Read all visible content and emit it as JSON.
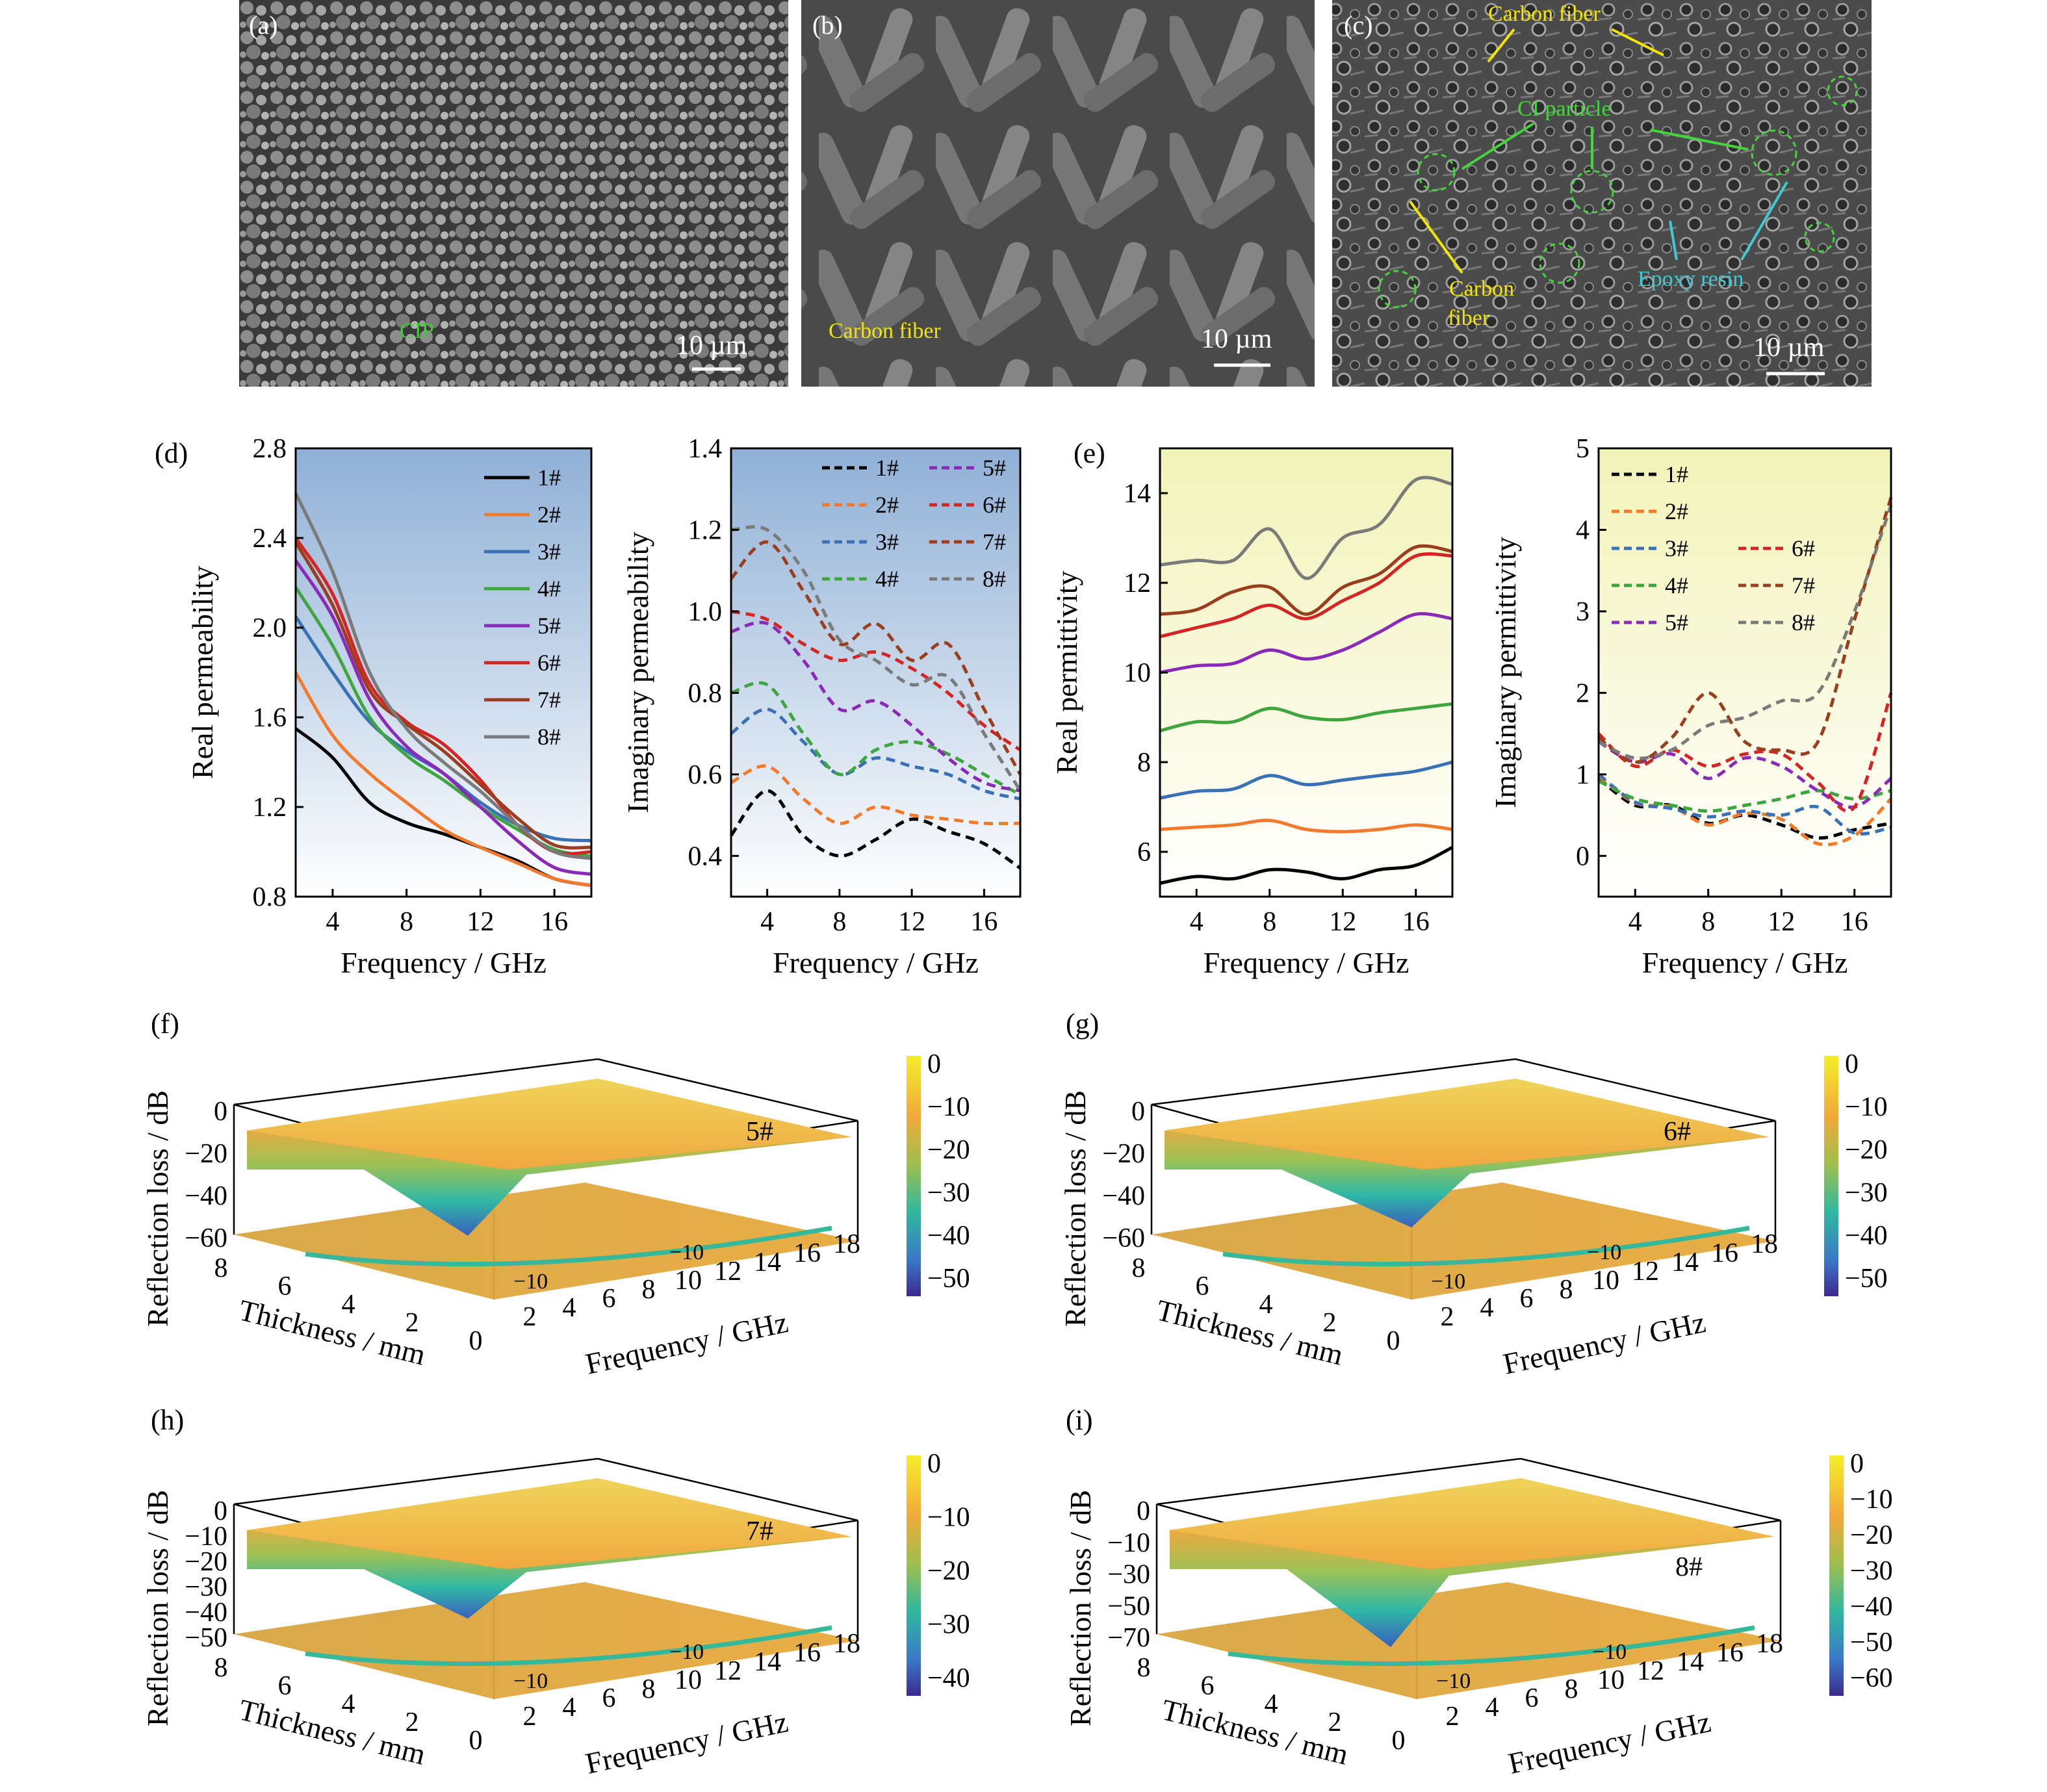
{
  "sem": [
    {
      "letter": "(a)",
      "label": "CIP",
      "label_color": "#39d42a",
      "scale": "10 µm"
    },
    {
      "letter": "(b)",
      "label": "Carbon fiber",
      "label_color": "#f2e600",
      "scale": "10 µm"
    },
    {
      "letter": "(c)",
      "scale": "10 µm",
      "annotations": [
        {
          "text": "Carbon fiber",
          "color": "#f2e600"
        },
        {
          "text": "CI particle",
          "color": "#43d63a"
        },
        {
          "text": "Carbon",
          "color": "#f2e600"
        },
        {
          "text": "fiber",
          "color": "#f2e600"
        },
        {
          "text": "Epoxy resin",
          "color": "#3fc9d0"
        }
      ]
    }
  ],
  "panel_letters": {
    "d": "(d)",
    "e": "(e)",
    "f": "(f)",
    "g": "(g)",
    "h": "(h)",
    "i": "(i)"
  },
  "series_colors": {
    "1#": "#000000",
    "2#": "#f47a2b",
    "3#": "#3a70b5",
    "4#": "#3fa63f",
    "5#": "#8b2ab8",
    "6#": "#d42424",
    "7#": "#9a3e1e",
    "8#": "#7a7a7a"
  },
  "chart_data": [
    {
      "id": "real-permeability",
      "type": "line",
      "xlabel": "Frequency / GHz",
      "ylabel": "Real permeability",
      "xlim": [
        2,
        18
      ],
      "ylim": [
        0.8,
        2.8
      ],
      "xticks": [
        4,
        8,
        12,
        16
      ],
      "yticks": [
        "0.8",
        "1.2",
        "1.6",
        "2.0",
        "2.4",
        "2.8"
      ],
      "line": "solid",
      "background": "blue",
      "legend": [
        "1#",
        "2#",
        "3#",
        "4#",
        "5#",
        "6#",
        "7#",
        "8#"
      ],
      "x": [
        2,
        4,
        6,
        8,
        10,
        12,
        14,
        16,
        18
      ],
      "series": [
        {
          "name": "1#",
          "values": [
            1.55,
            1.42,
            1.22,
            1.13,
            1.08,
            1.02,
            0.96,
            0.88,
            0.85
          ]
        },
        {
          "name": "2#",
          "values": [
            1.8,
            1.52,
            1.35,
            1.22,
            1.1,
            1.02,
            0.95,
            0.88,
            0.85
          ]
        },
        {
          "name": "3#",
          "values": [
            2.05,
            1.8,
            1.58,
            1.45,
            1.35,
            1.22,
            1.12,
            1.06,
            1.05
          ]
        },
        {
          "name": "4#",
          "values": [
            2.18,
            1.92,
            1.6,
            1.43,
            1.32,
            1.2,
            1.1,
            1.01,
            0.98
          ]
        },
        {
          "name": "5#",
          "values": [
            2.3,
            2.05,
            1.68,
            1.47,
            1.35,
            1.2,
            1.05,
            0.93,
            0.9
          ]
        },
        {
          "name": "6#",
          "values": [
            2.4,
            2.15,
            1.75,
            1.58,
            1.48,
            1.32,
            1.12,
            1.0,
            1.0
          ]
        },
        {
          "name": "7#",
          "values": [
            2.38,
            2.1,
            1.72,
            1.57,
            1.45,
            1.3,
            1.15,
            1.03,
            1.02
          ]
        },
        {
          "name": "8#",
          "values": [
            2.6,
            2.25,
            1.8,
            1.55,
            1.4,
            1.27,
            1.12,
            1.0,
            0.97
          ]
        }
      ]
    },
    {
      "id": "imaginary-permeability",
      "type": "line",
      "xlabel": "Frequency / GHz",
      "ylabel": "Imaginary permeability",
      "xlim": [
        2,
        18
      ],
      "ylim": [
        0.3,
        1.4
      ],
      "xticks": [
        4,
        8,
        12,
        16
      ],
      "yticks": [
        "0.4",
        "0.6",
        "0.8",
        "1.0",
        "1.2",
        "1.4"
      ],
      "line": "dashed",
      "background": "blue",
      "legend": [
        "1#",
        "2#",
        "3#",
        "4#",
        "5#",
        "6#",
        "7#",
        "8#"
      ],
      "x": [
        2,
        4,
        6,
        8,
        10,
        12,
        14,
        16,
        18
      ],
      "series": [
        {
          "name": "1#",
          "values": [
            0.45,
            0.56,
            0.45,
            0.4,
            0.44,
            0.49,
            0.46,
            0.43,
            0.37
          ]
        },
        {
          "name": "2#",
          "values": [
            0.58,
            0.62,
            0.54,
            0.48,
            0.52,
            0.5,
            0.49,
            0.48,
            0.48
          ]
        },
        {
          "name": "3#",
          "values": [
            0.7,
            0.76,
            0.68,
            0.6,
            0.64,
            0.62,
            0.6,
            0.56,
            0.54
          ]
        },
        {
          "name": "4#",
          "values": [
            0.8,
            0.82,
            0.7,
            0.6,
            0.66,
            0.68,
            0.65,
            0.6,
            0.55
          ]
        },
        {
          "name": "5#",
          "values": [
            0.95,
            0.97,
            0.88,
            0.76,
            0.78,
            0.72,
            0.64,
            0.58,
            0.56
          ]
        },
        {
          "name": "6#",
          "values": [
            1.0,
            0.98,
            0.92,
            0.88,
            0.9,
            0.86,
            0.8,
            0.72,
            0.66
          ]
        },
        {
          "name": "7#",
          "values": [
            1.08,
            1.17,
            1.05,
            0.92,
            0.97,
            0.88,
            0.92,
            0.76,
            0.6
          ]
        },
        {
          "name": "8#",
          "values": [
            1.2,
            1.2,
            1.1,
            0.93,
            0.88,
            0.82,
            0.84,
            0.7,
            0.56
          ]
        }
      ]
    },
    {
      "id": "real-permittivity",
      "type": "line",
      "xlabel": "Frequency / GHz",
      "ylabel": "Real permittivity",
      "xlim": [
        2,
        18
      ],
      "ylim": [
        5,
        15
      ],
      "xticks": [
        4,
        8,
        12,
        16
      ],
      "yticks": [
        "6",
        "8",
        "10",
        "12",
        "14"
      ],
      "line": "solid",
      "background": "yellow",
      "legend": [],
      "x": [
        2,
        4,
        6,
        8,
        10,
        12,
        14,
        16,
        18
      ],
      "series": [
        {
          "name": "1#",
          "values": [
            5.3,
            5.45,
            5.4,
            5.6,
            5.55,
            5.4,
            5.6,
            5.7,
            6.1
          ]
        },
        {
          "name": "2#",
          "values": [
            6.5,
            6.55,
            6.6,
            6.7,
            6.5,
            6.45,
            6.5,
            6.6,
            6.5
          ]
        },
        {
          "name": "3#",
          "values": [
            7.2,
            7.35,
            7.4,
            7.7,
            7.5,
            7.6,
            7.7,
            7.8,
            8.0
          ]
        },
        {
          "name": "4#",
          "values": [
            8.7,
            8.9,
            8.9,
            9.2,
            9.0,
            8.95,
            9.1,
            9.2,
            9.3
          ]
        },
        {
          "name": "5#",
          "values": [
            10.0,
            10.15,
            10.2,
            10.5,
            10.3,
            10.5,
            10.9,
            11.3,
            11.2
          ]
        },
        {
          "name": "6#",
          "values": [
            10.8,
            11.0,
            11.2,
            11.5,
            11.2,
            11.6,
            12.0,
            12.6,
            12.6
          ]
        },
        {
          "name": "7#",
          "values": [
            11.3,
            11.4,
            11.8,
            11.9,
            11.3,
            11.9,
            12.2,
            12.8,
            12.7
          ]
        },
        {
          "name": "8#",
          "values": [
            12.4,
            12.5,
            12.5,
            13.2,
            12.1,
            13.0,
            13.3,
            14.3,
            14.2
          ]
        }
      ]
    },
    {
      "id": "imaginary-permittivity",
      "type": "line",
      "xlabel": "Frequency / GHz",
      "ylabel": "Imaginary permittivity",
      "xlim": [
        2,
        18
      ],
      "ylim": [
        -0.5,
        5
      ],
      "xticks": [
        4,
        8,
        12,
        16
      ],
      "yticks": [
        "0",
        "1",
        "2",
        "3",
        "4",
        "5"
      ],
      "line": "dashed",
      "background": "yellow",
      "legend": [
        "1#",
        "2#",
        "3#",
        "4#",
        "5#",
        "6#",
        "7#",
        "8#"
      ],
      "x": [
        2,
        4,
        6,
        8,
        10,
        12,
        14,
        16,
        18
      ],
      "series": [
        {
          "name": "1#",
          "values": [
            0.95,
            0.62,
            0.62,
            0.4,
            0.5,
            0.38,
            0.22,
            0.32,
            0.4
          ]
        },
        {
          "name": "2#",
          "values": [
            0.98,
            0.65,
            0.6,
            0.38,
            0.52,
            0.45,
            0.15,
            0.25,
            0.7
          ]
        },
        {
          "name": "3#",
          "values": [
            1.0,
            0.66,
            0.58,
            0.48,
            0.55,
            0.5,
            0.6,
            0.28,
            0.35
          ]
        },
        {
          "name": "4#",
          "values": [
            0.92,
            0.7,
            0.62,
            0.55,
            0.62,
            0.7,
            0.8,
            0.7,
            0.8
          ]
        },
        {
          "name": "5#",
          "values": [
            1.4,
            1.15,
            1.25,
            0.95,
            1.2,
            1.1,
            0.8,
            0.6,
            0.95
          ]
        },
        {
          "name": "6#",
          "values": [
            1.5,
            1.1,
            1.3,
            1.1,
            1.25,
            1.25,
            0.9,
            0.6,
            2.0
          ]
        },
        {
          "name": "7#",
          "values": [
            1.45,
            1.15,
            1.45,
            2.0,
            1.4,
            1.3,
            1.4,
            2.9,
            4.4
          ]
        },
        {
          "name": "8#",
          "values": [
            1.4,
            1.2,
            1.3,
            1.6,
            1.7,
            1.9,
            2.0,
            3.0,
            4.3
          ]
        }
      ]
    },
    {
      "id": "rl-5",
      "type": "heatmap",
      "label": "5#",
      "zlabel": "Reflection loss / dB",
      "xlabel": "Frequency / GHz",
      "ylabel": "Thickness / mm",
      "zticks": [
        "0",
        "−20",
        "−40",
        "−60"
      ],
      "cticks": [
        "0",
        "−10",
        "−20",
        "−30",
        "−40",
        "−50"
      ],
      "xticks": [
        "2",
        "4",
        "6",
        "8",
        "10",
        "12",
        "14",
        "16",
        "18"
      ],
      "yticks": [
        "8",
        "6",
        "4",
        "2",
        "0"
      ],
      "contour": [
        "−10",
        "−10"
      ],
      "min_rl": -55
    },
    {
      "id": "rl-6",
      "type": "heatmap",
      "label": "6#",
      "zlabel": "Reflection loss / dB",
      "xlabel": "Frequency / GHz",
      "ylabel": "Thickness / mm",
      "zticks": [
        "0",
        "−20",
        "−40",
        "−60"
      ],
      "cticks": [
        "0",
        "−10",
        "−20",
        "−30",
        "−40",
        "−50"
      ],
      "xticks": [
        "2",
        "4",
        "6",
        "8",
        "10",
        "12",
        "14",
        "16",
        "18"
      ],
      "yticks": [
        "8",
        "6",
        "4",
        "2",
        "0"
      ],
      "contour": [
        "−10",
        "−10"
      ],
      "min_rl": -50
    },
    {
      "id": "rl-7",
      "type": "heatmap",
      "label": "7#",
      "zlabel": "Reflection loss / dB",
      "xlabel": "Frequency / GHz",
      "ylabel": "Thickness / mm",
      "zticks": [
        "0",
        "−10",
        "−20",
        "−30",
        "−40",
        "−50"
      ],
      "cticks": [
        "0",
        "−10",
        "−20",
        "−30",
        "−40"
      ],
      "xticks": [
        "2",
        "4",
        "6",
        "8",
        "10",
        "12",
        "14",
        "16",
        "18"
      ],
      "yticks": [
        "8",
        "6",
        "4",
        "2",
        "0"
      ],
      "contour": [
        "−10",
        "−10"
      ],
      "min_rl": -45
    },
    {
      "id": "rl-8",
      "type": "heatmap",
      "label": "8#",
      "zlabel": "Reflection loss / dB",
      "xlabel": "Frequency / GHz",
      "ylabel": "Thickness / mm",
      "zticks": [
        "0",
        "−10",
        "−30",
        "−50",
        "−70"
      ],
      "cticks": [
        "0",
        "−10",
        "−20",
        "−30",
        "−40",
        "−50",
        "−60"
      ],
      "xticks": [
        "2",
        "4",
        "6",
        "8",
        "10",
        "12",
        "14",
        "16",
        "18"
      ],
      "yticks": [
        "8",
        "6",
        "4",
        "2",
        "0"
      ],
      "contour": [
        "−10",
        "−10"
      ],
      "min_rl": -62
    }
  ]
}
